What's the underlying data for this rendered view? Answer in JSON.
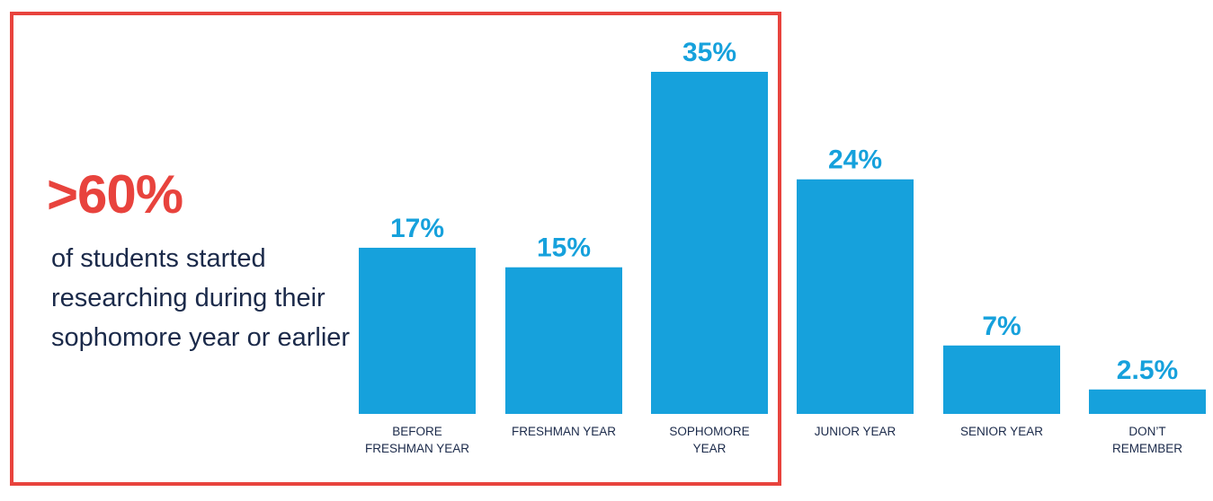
{
  "callout": {
    "stat": ">60%",
    "text": "of students started researching during their sophomore year or earlier"
  },
  "colors": {
    "bar": "#16a1dc",
    "highlight": "#e8433d",
    "text": "#1b2a4a"
  },
  "chart_data": {
    "type": "bar",
    "title": "",
    "xlabel": "",
    "ylabel": "",
    "ylim": [
      0,
      35
    ],
    "categories": [
      [
        "BEFORE",
        "FRESHMAN YEAR"
      ],
      [
        "FRESHMAN YEAR"
      ],
      [
        "SOPHOMORE",
        "YEAR"
      ],
      [
        "JUNIOR YEAR"
      ],
      [
        "SENIOR YEAR"
      ],
      [
        "DON’T",
        "REMEMBER"
      ]
    ],
    "values": [
      17,
      15,
      35,
      24,
      7,
      2.5
    ],
    "value_labels": [
      "17%",
      "15%",
      "35%",
      "24%",
      "7%",
      "2.5%"
    ],
    "highlighted_categories": 3,
    "grid": false,
    "legend": "none"
  }
}
